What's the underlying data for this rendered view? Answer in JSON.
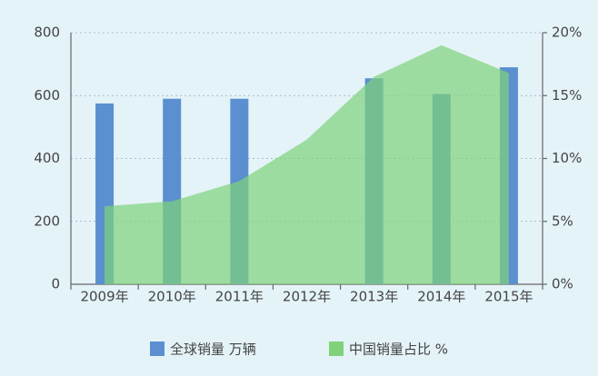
{
  "chart_data": {
    "type": "bar-area",
    "categories": [
      "2009年",
      "2010年",
      "2011年",
      "2012年",
      "2013年",
      "2014年",
      "2015年"
    ],
    "series": [
      {
        "name": "全球销量 万辆",
        "color": "#5b8fd0",
        "type": "bar",
        "values": [
          575,
          590,
          590,
          null,
          655,
          605,
          690
        ]
      },
      {
        "name": "中国销量占比 %",
        "color": "#7fd27a",
        "type": "area",
        "axis": "y2",
        "values": [
          6.2,
          6.6,
          8.2,
          11.5,
          16.5,
          19.0,
          16.8
        ]
      }
    ],
    "ylim": [
      0,
      800
    ],
    "yticks": [
      0,
      200,
      400,
      600,
      800
    ],
    "y2lim": [
      0,
      20
    ],
    "y2ticks": [
      {
        "value": 0,
        "label": "0%"
      },
      {
        "value": 5,
        "label": "5%"
      },
      {
        "value": 10,
        "label": "10%"
      },
      {
        "value": 15,
        "label": "15%"
      },
      {
        "value": 20,
        "label": "20%"
      }
    ],
    "grid": true
  }
}
